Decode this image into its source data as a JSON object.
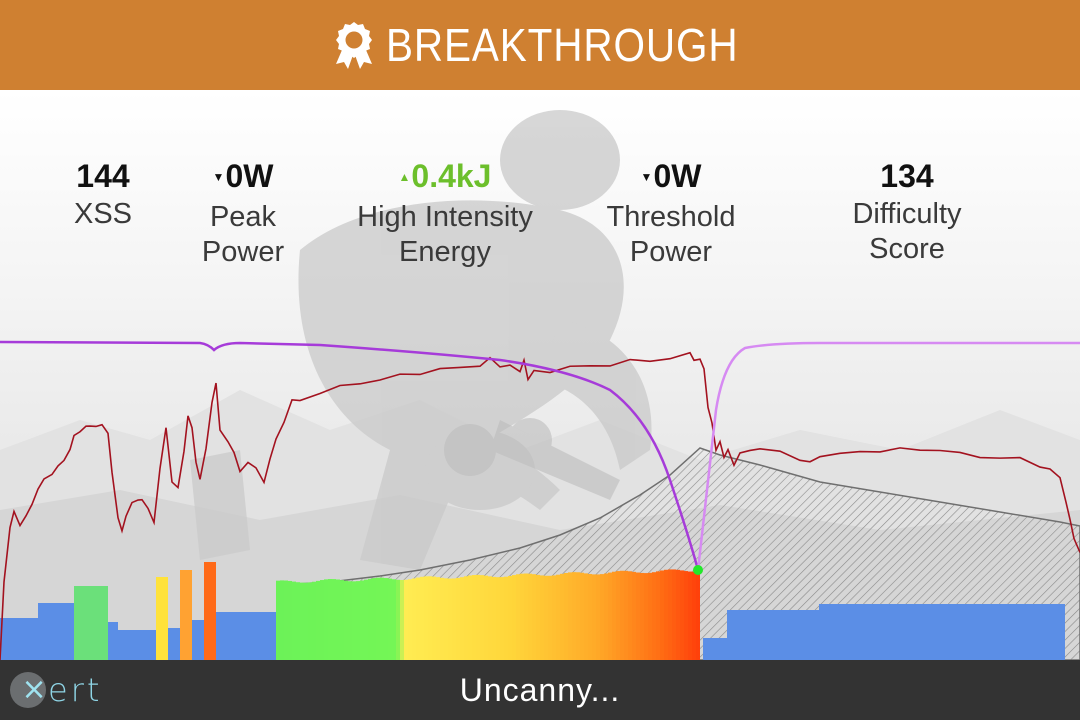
{
  "header": {
    "title": "BREAKTHROUGH",
    "icon": "award-badge-icon",
    "background_color": "#cf8031"
  },
  "stats": [
    {
      "value": "144",
      "label": "XSS",
      "trend": "none"
    },
    {
      "value": "0W",
      "label": "Peak\nPower",
      "trend": "down"
    },
    {
      "value": "0.4kJ",
      "label": "High Intensity\nEnergy",
      "trend": "up"
    },
    {
      "value": "0W",
      "label": "Threshold\nPower",
      "trend": "down"
    },
    {
      "value": "134",
      "label": "Difficulty Score",
      "trend": "none"
    }
  ],
  "chart_data": {
    "type": "area",
    "series": [
      {
        "color": "#a3121f",
        "kind": "line"
      },
      {
        "color": "#b24fe0",
        "kind": "line"
      },
      {
        "color": "#777777",
        "kind": "hatched-area"
      },
      {
        "kind": "colored-bars"
      }
    ],
    "colors": {
      "power_line": "#a3121f",
      "mpa_line": "#b24fe0",
      "endurance_bars": "#5b8ee6",
      "breakthrough_marker": "#22e82a"
    }
  },
  "footer": {
    "caption": "Uncanny...",
    "logo_text": "ert",
    "logo_mark": "×",
    "background_color": "#333333"
  }
}
